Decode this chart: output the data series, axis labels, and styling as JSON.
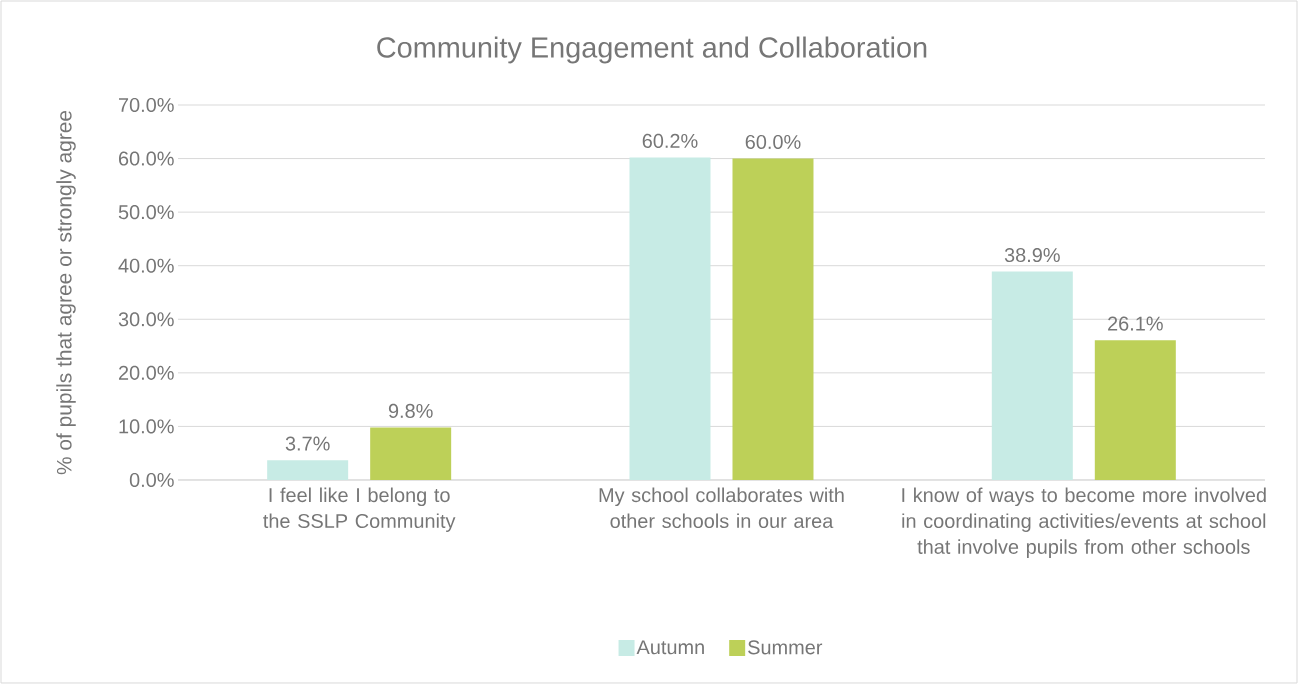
{
  "chart_data": {
    "type": "bar",
    "title": "Community Engagement and Collaboration",
    "ylabel": "% of pupils that agree or strongly agree",
    "categories": [
      "I feel like I belong to the SSLP Community",
      "My school collaborates with other schools in our area",
      "I know of ways to become more involved in coordinating activities/events at school that involve pupils from other schools"
    ],
    "series": [
      {
        "name": "Autumn",
        "color": "#c7ebe5",
        "values": [
          3.7,
          60.2,
          38.9
        ],
        "value_labels": [
          "3.7%",
          "60.2%",
          "38.9%"
        ]
      },
      {
        "name": "Summer",
        "color": "#bdd058",
        "values": [
          9.8,
          60.0,
          26.1
        ],
        "value_labels": [
          "9.8%",
          "60.0%",
          "26.1%"
        ]
      }
    ],
    "ylim": [
      0,
      70
    ],
    "yticks": [
      {
        "value": 0,
        "label": "0.0%"
      },
      {
        "value": 10,
        "label": "10.0%"
      },
      {
        "value": 20,
        "label": "20.0%"
      },
      {
        "value": 30,
        "label": "30.0%"
      },
      {
        "value": 40,
        "label": "40.0%"
      },
      {
        "value": 50,
        "label": "50.0%"
      },
      {
        "value": 60,
        "label": "60.0%"
      },
      {
        "value": 70,
        "label": "70.0%"
      }
    ],
    "grid": "y",
    "legend": "bottom"
  }
}
